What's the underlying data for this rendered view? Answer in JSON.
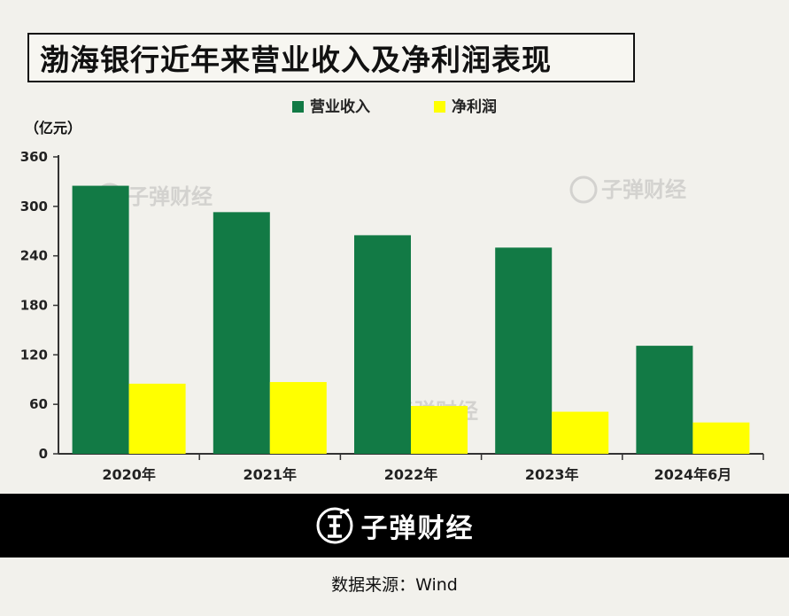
{
  "title": "渤海银行近年来营业收入及净利润表现",
  "chart_data": {
    "type": "bar",
    "unit": "（亿元）",
    "categories": [
      "2020年",
      "2021年",
      "2022年",
      "2023年",
      "2024年6月"
    ],
    "series": [
      {
        "name": "营业收入",
        "color": "#127a45",
        "values": [
          325,
          293,
          265,
          250,
          131
        ]
      },
      {
        "name": "净利润",
        "color": "#ffff00",
        "values": [
          85,
          87,
          58,
          51,
          38
        ]
      }
    ],
    "ylim": [
      0,
      360
    ],
    "yticks": [
      "0",
      "60",
      "120",
      "180",
      "240",
      "300",
      "360"
    ],
    "legend_position": "top-center",
    "grid": false
  },
  "watermark": "子弹财经",
  "footer": {
    "brand": "子弹财经",
    "source": "数据来源：Wind"
  }
}
